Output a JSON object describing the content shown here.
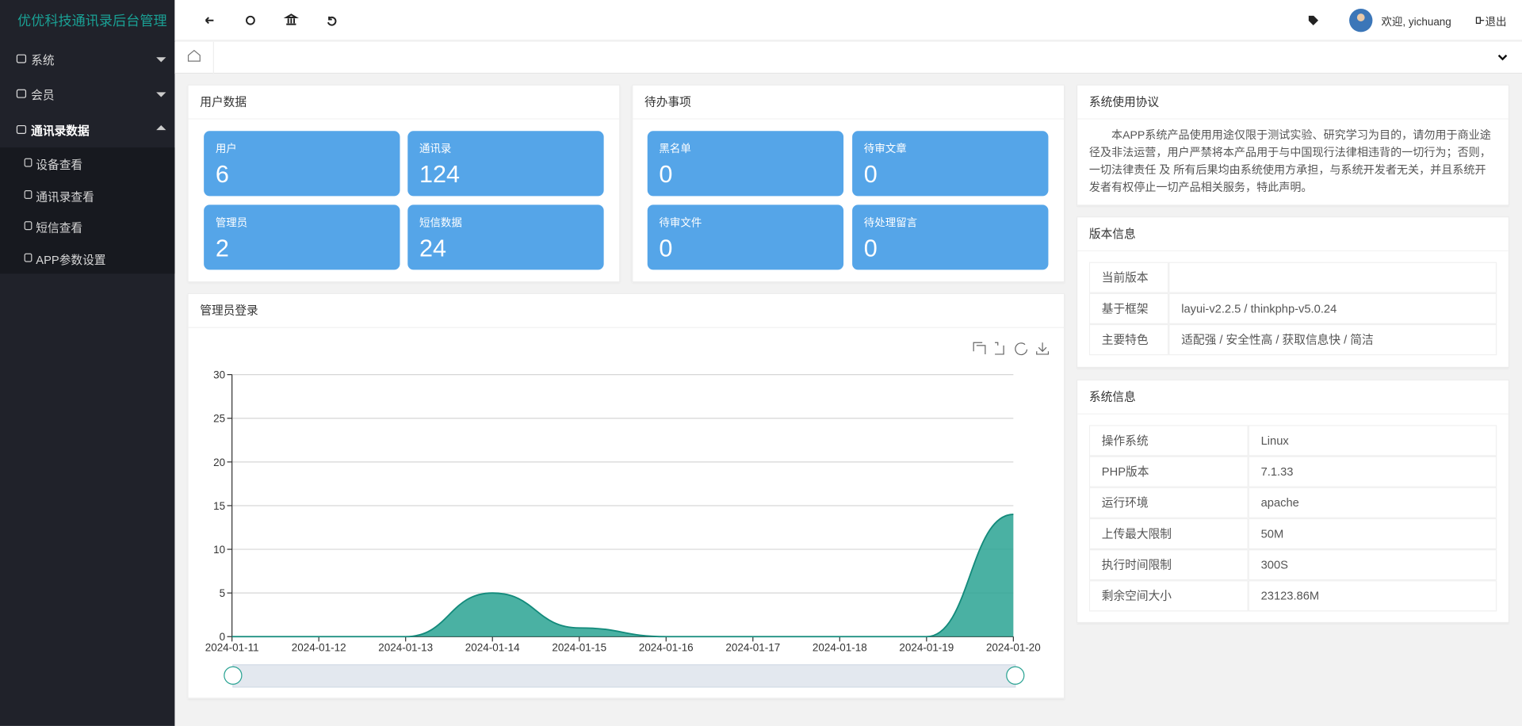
{
  "sidebar": {
    "title": "优优科技通讯录后台管理",
    "menu": [
      {
        "label": "系统"
      },
      {
        "label": "会员"
      },
      {
        "label": "通讯录数据",
        "children": [
          "设备查看",
          "通讯录查看",
          "短信查看",
          "APP参数设置"
        ]
      }
    ]
  },
  "topbar": {
    "welcome": "欢迎, yichuang",
    "logout": "退出"
  },
  "user_data": {
    "title": "用户数据",
    "cards": [
      {
        "label": "用户",
        "value": 6
      },
      {
        "label": "通讯录",
        "value": 124
      },
      {
        "label": "管理员",
        "value": 2
      },
      {
        "label": "短信数据",
        "value": 24
      }
    ]
  },
  "todo": {
    "title": "待办事项",
    "cards": [
      {
        "label": "黑名单",
        "value": 0
      },
      {
        "label": "待审文章",
        "value": 0
      },
      {
        "label": "待审文件",
        "value": 0
      },
      {
        "label": "待处理留言",
        "value": 0
      }
    ]
  },
  "agreement": {
    "title": "系统使用协议",
    "text": "本APP系统产品使用用途仅限于测试实验、研究学习为目的，请勿用于商业途径及非法运营，用户严禁将本产品用于与中国现行法律相违背的一切行为；否则，一切法律责任 及 所有后果均由系统使用方承担，与系统开发者无关，并且系统开发者有权停止一切产品相关服务，特此声明。"
  },
  "version": {
    "title": "版本信息",
    "rows": [
      {
        "label": "当前版本"
      },
      {
        "label": "基于框架",
        "value": "layui-v2.2.5 / thinkphp-v5.0.24"
      },
      {
        "label": "主要特色",
        "value": "适配强 / 安全性高 / 获取信息快 / 简洁"
      }
    ]
  },
  "system_info": {
    "title": "系统信息",
    "rows": [
      {
        "label": "操作系统",
        "value": "Linux"
      },
      {
        "label": "PHP版本",
        "value": "7.1.33"
      },
      {
        "label": "运行环境",
        "value": "apache"
      },
      {
        "label": "上传最大限制",
        "value": "50M"
      },
      {
        "label": "执行时间限制",
        "value": "300S"
      },
      {
        "label": "剩余空间大小",
        "value": "23123.86M"
      }
    ]
  },
  "chart_data": {
    "type": "area",
    "title": "管理员登录",
    "categories": [
      "2024-01-11",
      "2024-01-12",
      "2024-01-13",
      "2024-01-14",
      "2024-01-15",
      "2024-01-16",
      "2024-01-17",
      "2024-01-18",
      "2024-01-19",
      "2024-01-20"
    ],
    "values": [
      0,
      0,
      0,
      5,
      1,
      0,
      0,
      0,
      0,
      14
    ],
    "color": "#2aa393",
    "ylim": [
      0,
      30
    ],
    "yticks": [
      0,
      5,
      10,
      15,
      20,
      25,
      30
    ],
    "grid": true
  }
}
